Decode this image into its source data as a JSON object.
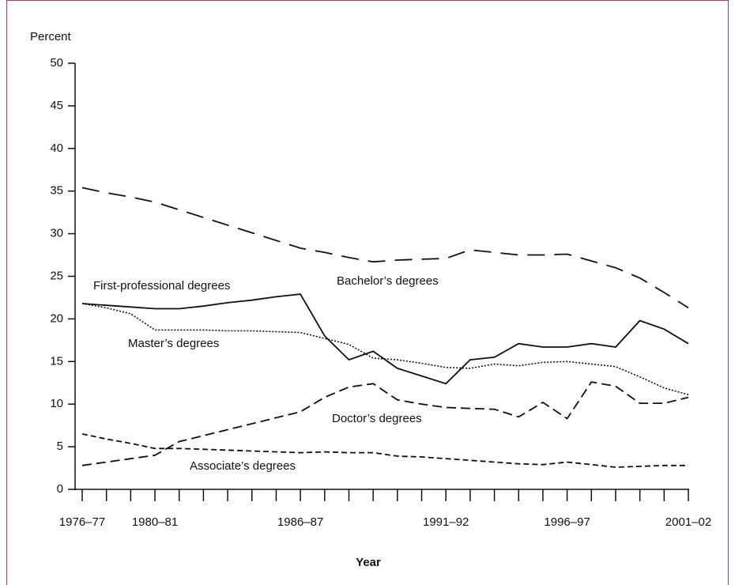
{
  "chart_data": {
    "type": "line",
    "ylabel": "Percent",
    "xlabel": "Year",
    "categories": [
      "1976–77",
      null,
      null,
      "1980–81",
      null,
      null,
      null,
      null,
      null,
      "1986–87",
      null,
      null,
      null,
      null,
      null,
      "1991–92",
      null,
      null,
      null,
      null,
      "1996–97",
      null,
      null,
      null,
      null,
      "2001–02"
    ],
    "ylim": [
      0,
      50
    ],
    "yticks": [
      0,
      5,
      10,
      15,
      20,
      25,
      30,
      35,
      40,
      45,
      50
    ],
    "series": [
      {
        "name": "Bachelor’s degrees",
        "color": "#111111",
        "dash": "long-dash",
        "values": [
          35.4,
          34.8,
          34.3,
          33.7,
          32.8,
          31.9,
          31.0,
          30.1,
          29.2,
          28.3,
          27.8,
          27.2,
          26.7,
          26.9,
          27.0,
          27.1,
          28.1,
          27.8,
          27.5,
          27.5,
          27.6,
          26.8,
          26.0,
          24.8,
          23.1,
          21.3
        ]
      },
      {
        "name": "First-professional degrees",
        "color": "#111111",
        "dash": "solid",
        "values": [
          21.8,
          21.6,
          21.4,
          21.2,
          21.2,
          21.5,
          21.9,
          22.2,
          22.6,
          22.9,
          18.0,
          15.2,
          16.2,
          14.2,
          13.3,
          12.4,
          15.2,
          15.5,
          17.1,
          16.7,
          16.7,
          17.1,
          16.7,
          19.8,
          18.8,
          17.1
        ]
      },
      {
        "name": "Master’s degrees",
        "color": "#111111",
        "dash": "dotted",
        "values": [
          21.8,
          21.3,
          20.6,
          18.7,
          18.7,
          18.7,
          18.6,
          18.6,
          18.5,
          18.4,
          17.7,
          17.0,
          15.4,
          15.2,
          14.8,
          14.3,
          14.2,
          14.7,
          14.5,
          14.9,
          15.0,
          14.7,
          14.4,
          13.2,
          11.9,
          11.1
        ]
      },
      {
        "name": "Doctor’s degrees",
        "color": "#111111",
        "dash": "dash",
        "values": [
          2.8,
          3.2,
          3.6,
          4.0,
          5.6,
          6.3,
          7.0,
          7.7,
          8.4,
          9.1,
          10.8,
          12.0,
          12.4,
          10.5,
          10.0,
          9.6,
          9.5,
          9.4,
          8.5,
          10.2,
          8.3,
          12.6,
          12.1,
          10.1,
          10.1,
          10.8
        ]
      },
      {
        "name": "Associate’s degrees",
        "color": "#111111",
        "dash": "short-dash",
        "values": [
          6.5,
          5.9,
          5.4,
          4.8,
          4.8,
          4.7,
          4.6,
          4.5,
          4.4,
          4.3,
          4.4,
          4.3,
          4.3,
          3.9,
          3.8,
          3.6,
          3.4,
          3.2,
          3.0,
          2.9,
          3.2,
          2.9,
          2.6,
          2.7,
          2.8,
          2.8
        ]
      }
    ]
  }
}
